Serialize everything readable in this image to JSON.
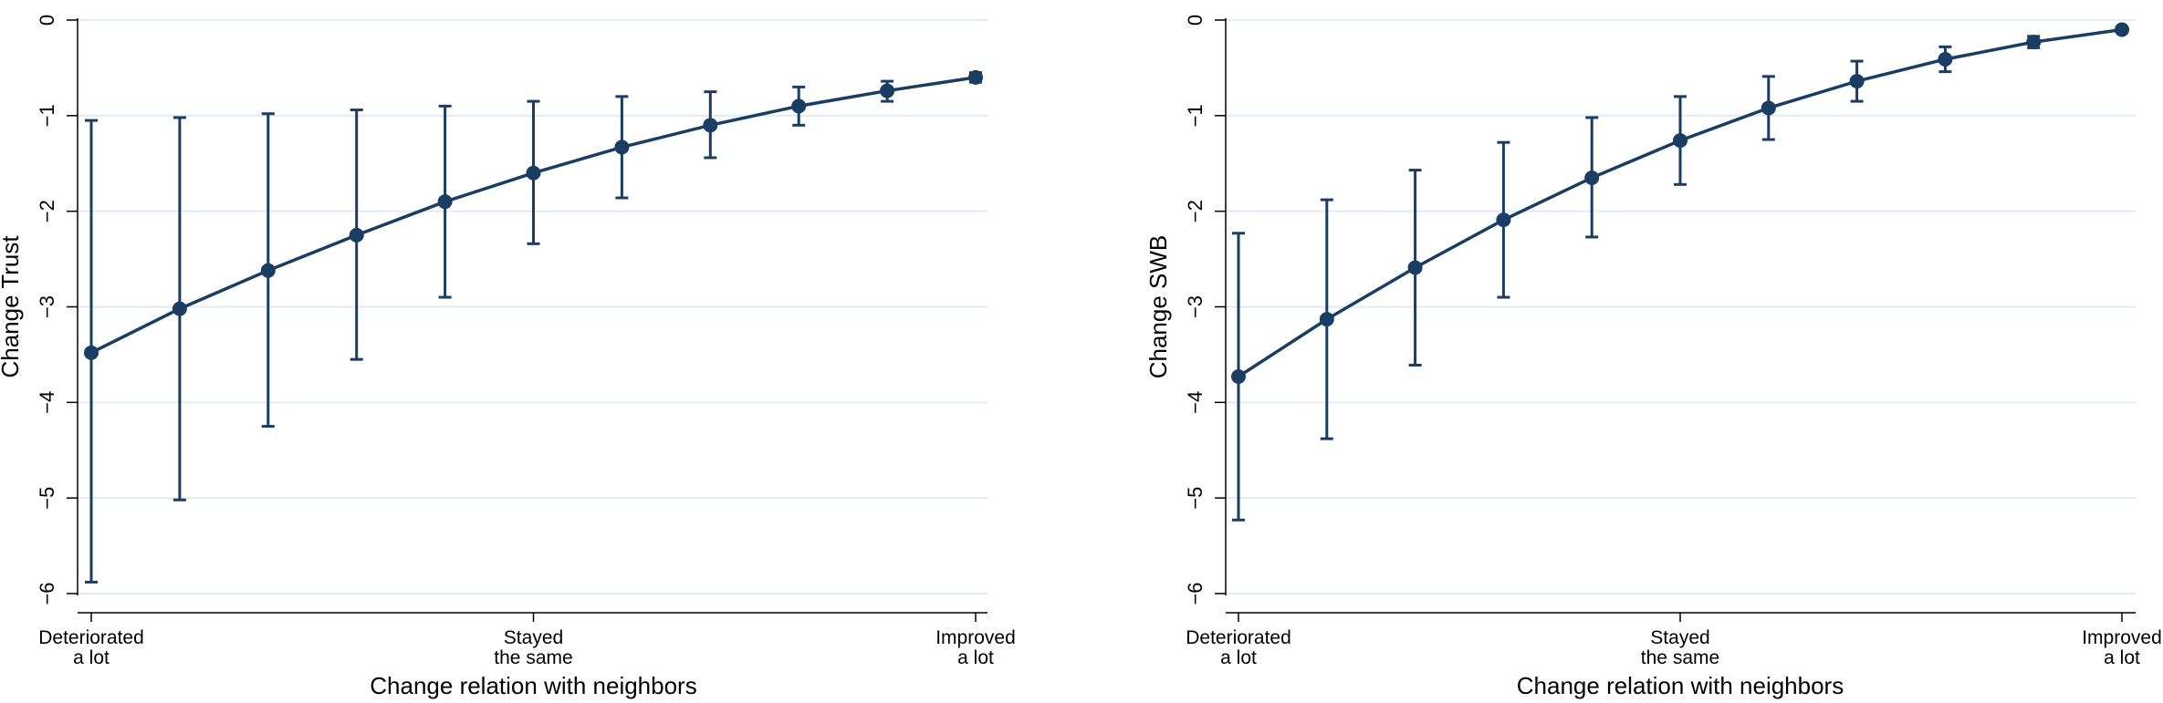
{
  "chart_data": [
    {
      "type": "line",
      "ylabel": "Change Trust",
      "xlabel": "Change relation with neighbors",
      "ylim": [
        -6,
        0
      ],
      "yticks": [
        0,
        -1,
        -2,
        -3,
        -4,
        -5,
        -6
      ],
      "grid": true,
      "x_tick_labels": [
        {
          "lines": [
            "Deteriorated",
            "a lot"
          ]
        },
        {
          "lines": [
            "Stayed",
            "the same"
          ]
        },
        {
          "lines": [
            "Improved",
            "a lot"
          ]
        }
      ],
      "series": [
        {
          "values": [
            -3.48,
            -3.02,
            -2.62,
            -2.25,
            -1.9,
            -1.6,
            -1.33,
            -1.1,
            -0.9,
            -0.74,
            -0.6
          ],
          "ci_lower": [
            -5.88,
            -5.02,
            -4.25,
            -3.55,
            -2.9,
            -2.34,
            -1.86,
            -1.44,
            -1.1,
            -0.85,
            -0.65
          ],
          "ci_upper": [
            -1.05,
            -1.02,
            -0.98,
            -0.94,
            -0.9,
            -0.85,
            -0.8,
            -0.75,
            -0.7,
            -0.64,
            -0.55
          ]
        }
      ]
    },
    {
      "type": "line",
      "ylabel": "Change SWB",
      "xlabel": "Change relation with neighbors",
      "ylim": [
        -6,
        0
      ],
      "yticks": [
        0,
        -1,
        -2,
        -3,
        -4,
        -5,
        -6
      ],
      "grid": true,
      "x_tick_labels": [
        {
          "lines": [
            "Deteriorated",
            "a lot"
          ]
        },
        {
          "lines": [
            "Stayed",
            "the same"
          ]
        },
        {
          "lines": [
            "Improved",
            "a lot"
          ]
        }
      ],
      "series": [
        {
          "values": [
            -3.73,
            -3.13,
            -2.59,
            -2.09,
            -1.65,
            -1.26,
            -0.92,
            -0.64,
            -0.41,
            -0.23,
            -0.1
          ],
          "ci_lower": [
            -5.23,
            -4.38,
            -3.61,
            -2.9,
            -2.27,
            -1.72,
            -1.25,
            -0.85,
            -0.54,
            -0.29,
            -0.12
          ],
          "ci_upper": [
            -2.23,
            -1.88,
            -1.57,
            -1.28,
            -1.02,
            -0.8,
            -0.59,
            -0.43,
            -0.28,
            -0.17,
            -0.08
          ]
        }
      ]
    }
  ],
  "style": {
    "line_color": "#1a3d63",
    "grid_color": "#e3ebf0",
    "axis_color": "#000000"
  }
}
